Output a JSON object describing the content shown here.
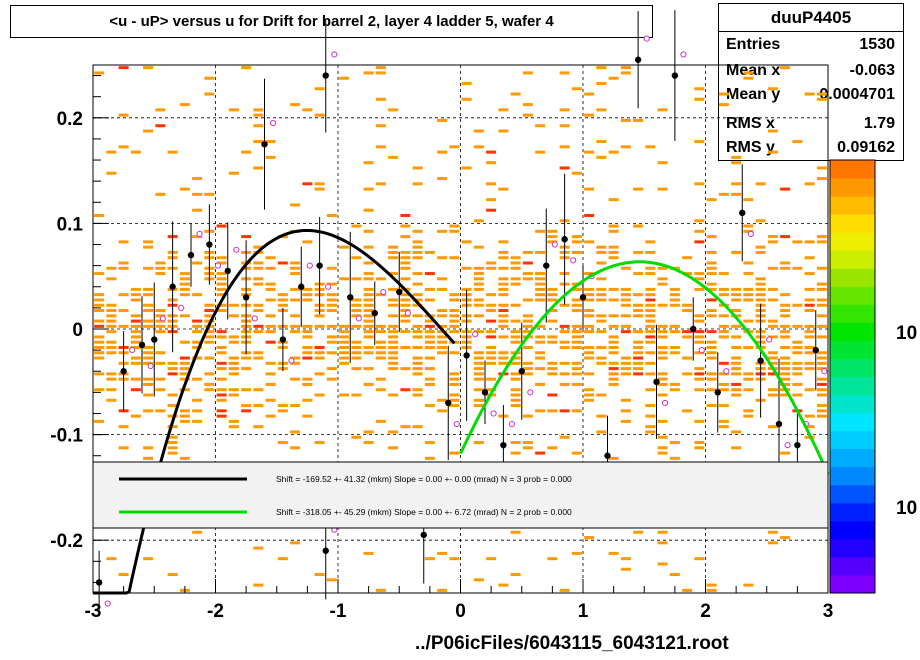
{
  "title": "<u - uP>       versus   u for Drift for barrel 2, layer 4 ladder 5, wafer 4",
  "stats": {
    "name": "duuP4405",
    "rows": [
      {
        "label": "Entries",
        "value": "1530"
      },
      {
        "label": "Mean x",
        "value": "-0.063"
      },
      {
        "label": "Mean y",
        "value": "0.0004701"
      },
      {
        "label": "RMS x",
        "value": "1.79"
      },
      {
        "label": "RMS y",
        "value": "0.09162"
      }
    ]
  },
  "legend": {
    "entries": [
      {
        "text": "Shift =  -169.52 +- 41.32 (mkm) Slope =     0.00 +- 0.00 (mrad)  N = 3 prob = 0.000",
        "color": "#000000"
      },
      {
        "text": "Shift =  -318.05 +- 45.29 (mkm) Slope =     0.00 +- 6.72 (mrad)  N = 2 prob = 0.000",
        "color": "#00dd00"
      }
    ]
  },
  "footer": "../P06icFiles/6043115_6043121.root",
  "palette": {
    "label_upper": "10",
    "label_lower": "10"
  },
  "chart_data": {
    "type": "scatter",
    "xlim": [
      -3,
      3
    ],
    "ylim": [
      -0.25,
      0.25
    ],
    "xticks": [
      "-3",
      "-2",
      "-1",
      "0",
      "1",
      "2",
      "3"
    ],
    "yticks": [
      "-0.2",
      "-0.1",
      "0",
      "0.1",
      "0.2"
    ],
    "grid": true,
    "colors": {
      "hist": "#ff9900",
      "hist_hot": "#ff3300",
      "profile": "#000000",
      "profile_alt": "#cc33cc",
      "fit1": "#000000",
      "fit2": "#00dd00"
    },
    "profile_points": [
      {
        "x": -2.95,
        "y": -0.24
      },
      {
        "x": -2.75,
        "y": -0.04
      },
      {
        "x": -2.6,
        "y": -0.015
      },
      {
        "x": -2.5,
        "y": -0.01
      },
      {
        "x": -2.35,
        "y": 0.04
      },
      {
        "x": -2.2,
        "y": 0.07
      },
      {
        "x": -2.05,
        "y": 0.08
      },
      {
        "x": -1.9,
        "y": 0.055
      },
      {
        "x": -1.75,
        "y": 0.03
      },
      {
        "x": -1.6,
        "y": 0.175
      },
      {
        "x": -1.45,
        "y": -0.01
      },
      {
        "x": -1.3,
        "y": 0.04
      },
      {
        "x": -1.15,
        "y": 0.06
      },
      {
        "x": -1.1,
        "y": 0.24
      },
      {
        "x": -0.9,
        "y": 0.03
      },
      {
        "x": -0.7,
        "y": 0.015
      },
      {
        "x": -0.5,
        "y": 0.035
      },
      {
        "x": -0.3,
        "y": -0.195
      },
      {
        "x": -0.1,
        "y": -0.07
      },
      {
        "x": 0.05,
        "y": -0.025
      },
      {
        "x": 0.2,
        "y": -0.06
      },
      {
        "x": 0.35,
        "y": -0.11
      },
      {
        "x": 0.5,
        "y": -0.04
      },
      {
        "x": 0.7,
        "y": 0.06
      },
      {
        "x": 0.85,
        "y": 0.085
      },
      {
        "x": 1.0,
        "y": 0.03
      },
      {
        "x": 1.2,
        "y": -0.12
      },
      {
        "x": 1.45,
        "y": 0.255
      },
      {
        "x": 1.6,
        "y": -0.05
      },
      {
        "x": 1.75,
        "y": 0.24
      },
      {
        "x": 1.9,
        "y": 0.0
      },
      {
        "x": 2.1,
        "y": -0.06
      },
      {
        "x": 2.3,
        "y": 0.11
      },
      {
        "x": 2.45,
        "y": -0.03
      },
      {
        "x": 2.6,
        "y": -0.09
      },
      {
        "x": 2.75,
        "y": -0.11
      },
      {
        "x": 2.9,
        "y": -0.02
      },
      {
        "x": -1.1,
        "y": -0.21
      }
    ],
    "fits": [
      {
        "name": "fit1",
        "xrange": [
          -3.0,
          -0.05
        ],
        "coeffs": [
          -0.02,
          -0.128,
          0.012,
          0.0335
        ]
      },
      {
        "name": "fit2",
        "xrange": [
          0.0,
          3.0
        ],
        "coeffs": [
          -0.118,
          0.2485,
          -0.085,
          0.0
        ]
      }
    ]
  }
}
